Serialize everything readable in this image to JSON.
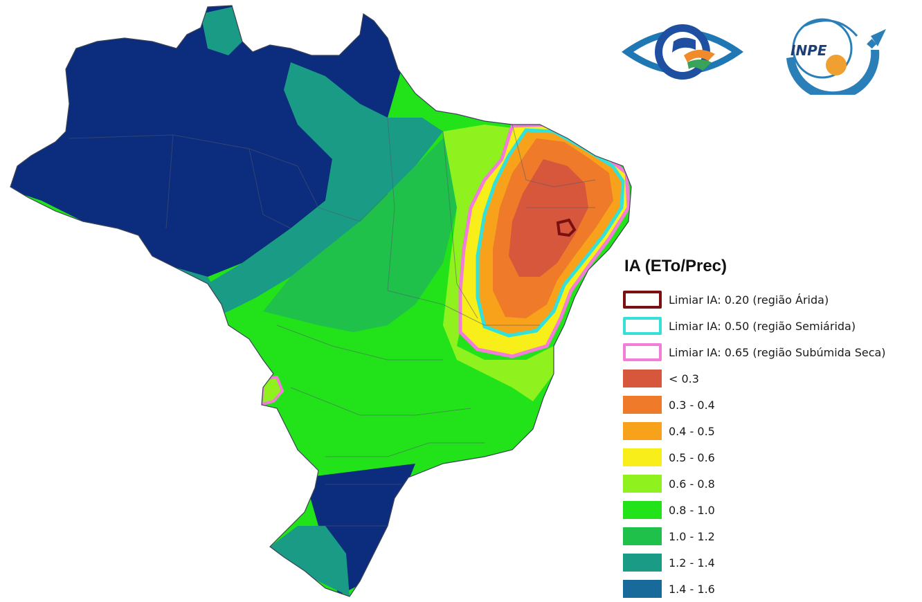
{
  "map": {
    "colors": {
      "class_lt_0_3": "#d7573c",
      "class_0_3_0_4": "#ee7a2a",
      "class_0_4_0_5": "#f7a21a",
      "class_0_5_0_6": "#f7ee1a",
      "class_0_6_0_8": "#8ff21e",
      "class_0_8_1_0": "#22e31a",
      "class_1_0_1_2": "#20c14a",
      "class_1_2_1_4": "#1a9b85",
      "class_1_4_1_6": "#186a9a",
      "class_gt_1_6": "#0c2c7e",
      "arid_outline": "#7a1010",
      "semiarid_outline": "#35e0d8",
      "subhumid_outline": "#f27cd8",
      "state_borders": "#505a6a"
    }
  },
  "logos": {
    "cptec": {
      "icon": "cptec-eye-logo"
    },
    "inpe": {
      "text": "INPE",
      "icon": "inpe-globe-arrow-logo"
    }
  },
  "legend": {
    "title": "IA (ETo/Prec)",
    "items": [
      {
        "label": "Limiar IA: 0.20 (região Árida)",
        "kind": "outline",
        "color": "#7a1010"
      },
      {
        "label": "Limiar IA: 0.50 (região Semiárida)",
        "kind": "outline",
        "color": "#35e0d8"
      },
      {
        "label": "Limiar IA: 0.65 (região Subúmida Seca)",
        "kind": "outline",
        "color": "#f27cd8"
      },
      {
        "label": "< 0.3",
        "kind": "fill",
        "color": "#d7573c"
      },
      {
        "label": "0.3 - 0.4",
        "kind": "fill",
        "color": "#ee7a2a"
      },
      {
        "label": "0.4 - 0.5",
        "kind": "fill",
        "color": "#f7a21a"
      },
      {
        "label": "0.5 - 0.6",
        "kind": "fill",
        "color": "#f7ee1a"
      },
      {
        "label": "0.6 - 0.8",
        "kind": "fill",
        "color": "#8ff21e"
      },
      {
        "label": "0.8 - 1.0",
        "kind": "fill",
        "color": "#22e31a"
      },
      {
        "label": "1.0 - 1.2",
        "kind": "fill",
        "color": "#20c14a"
      },
      {
        "label": "1.2 - 1.4",
        "kind": "fill",
        "color": "#1a9b85"
      },
      {
        "label": "1.4 - 1.6",
        "kind": "fill",
        "color": "#186a9a"
      }
    ]
  }
}
